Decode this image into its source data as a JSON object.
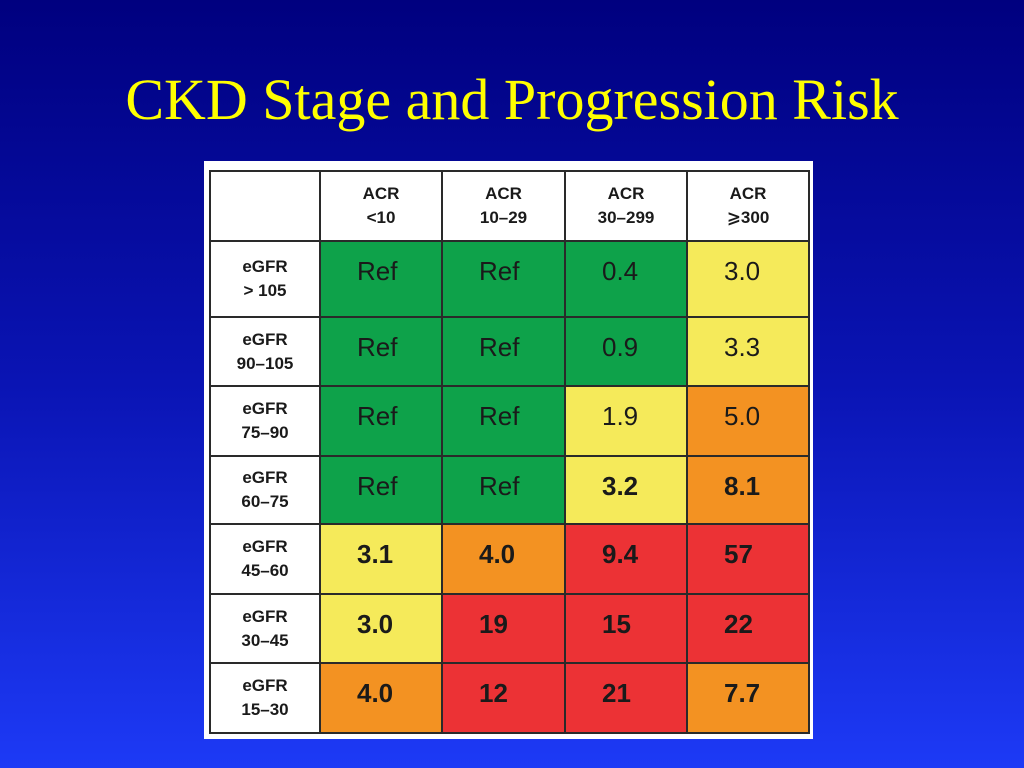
{
  "title": "CKD Stage and Progression Risk",
  "colors": {
    "green": "#0ea24a",
    "yellow": "#f5ea5a",
    "orange": "#f39222",
    "red": "#ec3235"
  },
  "table": {
    "columns": [
      {
        "line1": "ACR",
        "line2": "<10"
      },
      {
        "line1": "ACR",
        "line2": "10–29"
      },
      {
        "line1": "ACR",
        "line2": "30–299"
      },
      {
        "line1": "ACR",
        "line2": "⩾300"
      }
    ],
    "rows": [
      {
        "line1": "eGFR",
        "line2": "> 105",
        "cells": [
          {
            "value": "Ref",
            "color": "green",
            "bold": false
          },
          {
            "value": "Ref",
            "color": "green",
            "bold": false
          },
          {
            "value": "0.4",
            "color": "green",
            "bold": false
          },
          {
            "value": "3.0",
            "color": "yellow",
            "bold": false
          }
        ]
      },
      {
        "line1": "eGFR",
        "line2": "90–105",
        "cells": [
          {
            "value": "Ref",
            "color": "green",
            "bold": false
          },
          {
            "value": "Ref",
            "color": "green",
            "bold": false
          },
          {
            "value": "0.9",
            "color": "green",
            "bold": false
          },
          {
            "value": "3.3",
            "color": "yellow",
            "bold": false
          }
        ]
      },
      {
        "line1": "eGFR",
        "line2": "75–90",
        "cells": [
          {
            "value": "Ref",
            "color": "green",
            "bold": false
          },
          {
            "value": "Ref",
            "color": "green",
            "bold": false
          },
          {
            "value": "1.9",
            "color": "yellow",
            "bold": false
          },
          {
            "value": "5.0",
            "color": "orange",
            "bold": false
          }
        ]
      },
      {
        "line1": "eGFR",
        "line2": "60–75",
        "cells": [
          {
            "value": "Ref",
            "color": "green",
            "bold": false
          },
          {
            "value": "Ref",
            "color": "green",
            "bold": false
          },
          {
            "value": "3.2",
            "color": "yellow",
            "bold": true
          },
          {
            "value": "8.1",
            "color": "orange",
            "bold": true
          }
        ]
      },
      {
        "line1": "eGFR",
        "line2": "45–60",
        "cells": [
          {
            "value": "3.1",
            "color": "yellow",
            "bold": true
          },
          {
            "value": "4.0",
            "color": "orange",
            "bold": true
          },
          {
            "value": "9.4",
            "color": "red",
            "bold": true
          },
          {
            "value": "57",
            "color": "red",
            "bold": true
          }
        ]
      },
      {
        "line1": "eGFR",
        "line2": "30–45",
        "cells": [
          {
            "value": "3.0",
            "color": "yellow",
            "bold": true
          },
          {
            "value": "19",
            "color": "red",
            "bold": true
          },
          {
            "value": "15",
            "color": "red",
            "bold": true
          },
          {
            "value": "22",
            "color": "red",
            "bold": true
          }
        ]
      },
      {
        "line1": "eGFR",
        "line2": "15–30",
        "cells": [
          {
            "value": "4.0",
            "color": "orange",
            "bold": true
          },
          {
            "value": "12",
            "color": "red",
            "bold": true
          },
          {
            "value": "21",
            "color": "red",
            "bold": true
          },
          {
            "value": "7.7",
            "color": "orange",
            "bold": true
          }
        ]
      }
    ]
  }
}
